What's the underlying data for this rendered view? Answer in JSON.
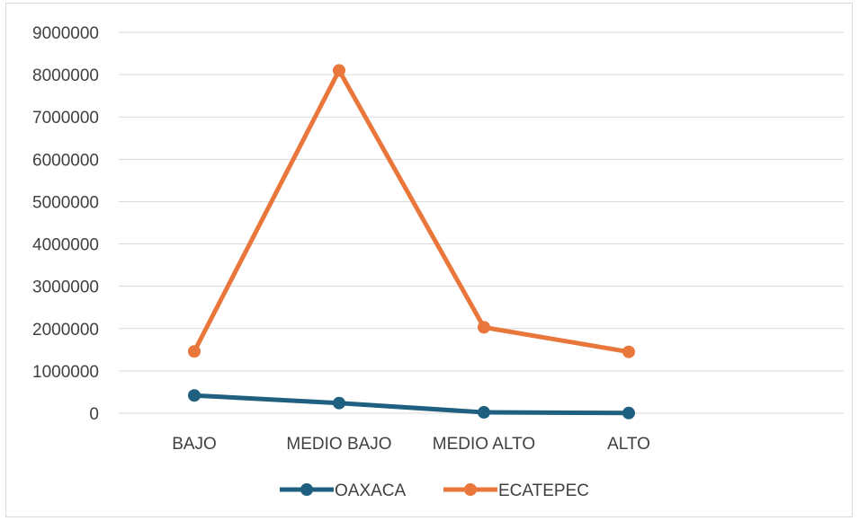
{
  "chart_data": {
    "type": "line",
    "categories": [
      "BAJO",
      "MEDIO BAJO",
      "MEDIO ALTO",
      "ALTO"
    ],
    "series": [
      {
        "name": "OAXACA",
        "color": "#1f5f7f",
        "values": [
          420000,
          240000,
          20000,
          5000
        ]
      },
      {
        "name": "ECATEPEC",
        "color": "#e9763a",
        "values": [
          1460000,
          8100000,
          2030000,
          1450000
        ]
      }
    ],
    "y_ticks": [
      "0",
      "1000000",
      "2000000",
      "3000000",
      "4000000",
      "5000000",
      "6000000",
      "7000000",
      "8000000",
      "9000000"
    ],
    "ylim": [
      0,
      9000000
    ],
    "title": "",
    "xlabel": "",
    "ylabel": "",
    "grid": true,
    "legend": "bottom",
    "gridline_color": "#d9d9d9"
  }
}
